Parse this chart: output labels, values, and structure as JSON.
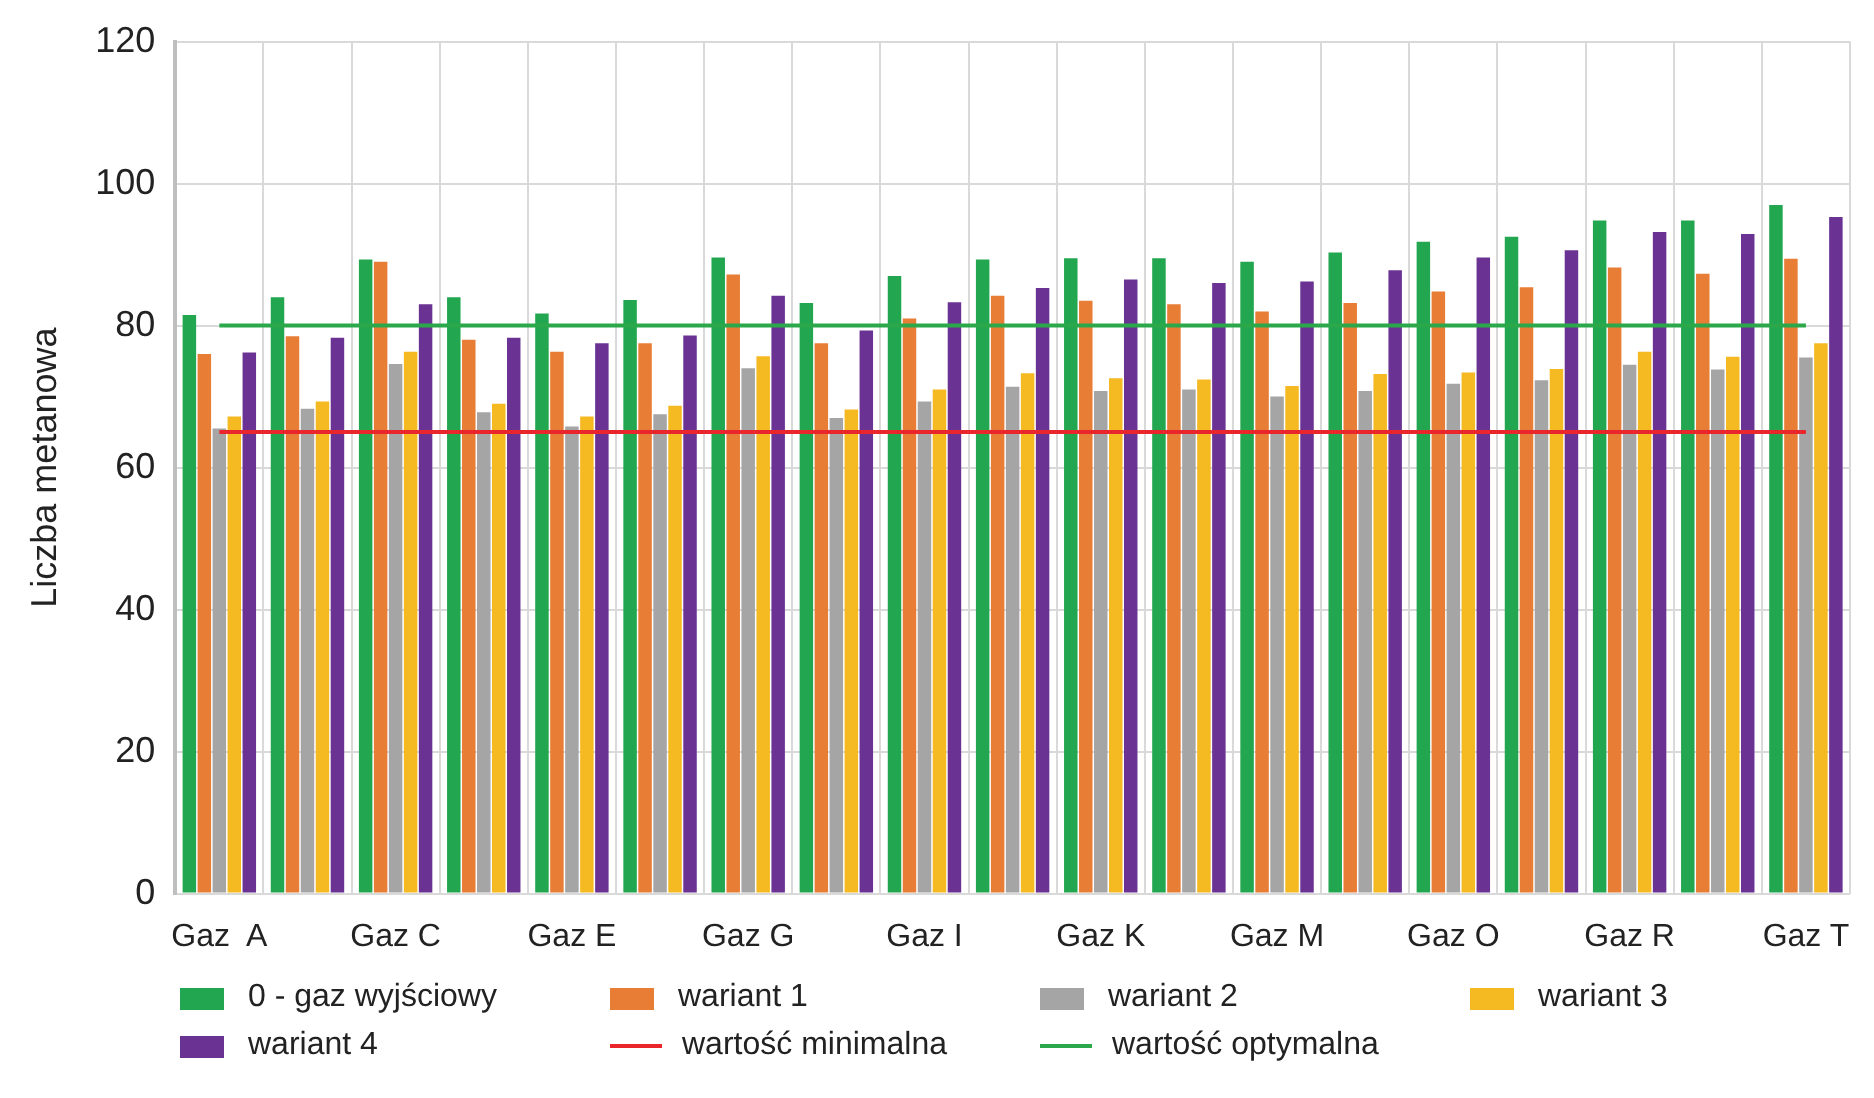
{
  "chart_data": {
    "type": "bar",
    "ylabel": "Liczba metanowa",
    "categories": [
      "Gaz  A",
      null,
      "Gaz C",
      null,
      "Gaz E",
      null,
      "Gaz G",
      null,
      "Gaz I",
      null,
      "Gaz K",
      null,
      "Gaz M",
      null,
      "Gaz O",
      null,
      "Gaz R",
      null,
      "Gaz T"
    ],
    "series": [
      {
        "name": "0 - gaz wyjściowy",
        "color": "#22a750",
        "values": [
          81.5,
          84,
          89.3,
          84,
          81.7,
          83.6,
          89.6,
          83.2,
          87,
          89.3,
          89.5,
          89.5,
          89,
          90.3,
          91.8,
          92.5,
          94.8,
          94.8,
          97
        ]
      },
      {
        "name": "wariant 1",
        "color": "#e87d35",
        "values": [
          76,
          78.5,
          89,
          78,
          76.3,
          77.5,
          87.2,
          77.5,
          81,
          84.2,
          83.5,
          83,
          82,
          83.2,
          84.8,
          85.4,
          88.2,
          87.3,
          89.4
        ]
      },
      {
        "name": "wariant 2",
        "color": "#a5a5a5",
        "values": [
          65.5,
          68.3,
          74.6,
          67.8,
          65.8,
          67.5,
          74,
          67,
          69.3,
          71.4,
          70.8,
          71,
          70,
          70.8,
          71.8,
          72.3,
          74.5,
          73.8,
          75.5
        ]
      },
      {
        "name": "wariant 3",
        "color": "#f5b922",
        "values": [
          67.2,
          69.3,
          76.3,
          69,
          67.2,
          68.7,
          75.7,
          68.2,
          71,
          73.3,
          72.6,
          72.4,
          71.5,
          73.2,
          73.4,
          73.9,
          76.3,
          75.6,
          77.5
        ]
      },
      {
        "name": "wariant 4",
        "color": "#6a3393",
        "values": [
          76.2,
          78.3,
          83,
          78.3,
          77.5,
          78.6,
          84.2,
          79.3,
          83.3,
          85.3,
          86.5,
          86,
          86.2,
          87.8,
          89.6,
          90.6,
          93.2,
          92.9,
          95.3
        ]
      }
    ],
    "ref_lines": [
      {
        "axis": "y",
        "value": 65,
        "label": "wartość minimalna",
        "color": "#e8262b"
      },
      {
        "axis": "y",
        "value": 80,
        "label": "wartość optymalna",
        "color": "#2aa84a"
      }
    ],
    "ylim": [
      0,
      120
    ],
    "yticks": [
      0,
      20,
      40,
      60,
      80,
      100,
      120
    ],
    "grid": true,
    "legend": "bottom"
  }
}
